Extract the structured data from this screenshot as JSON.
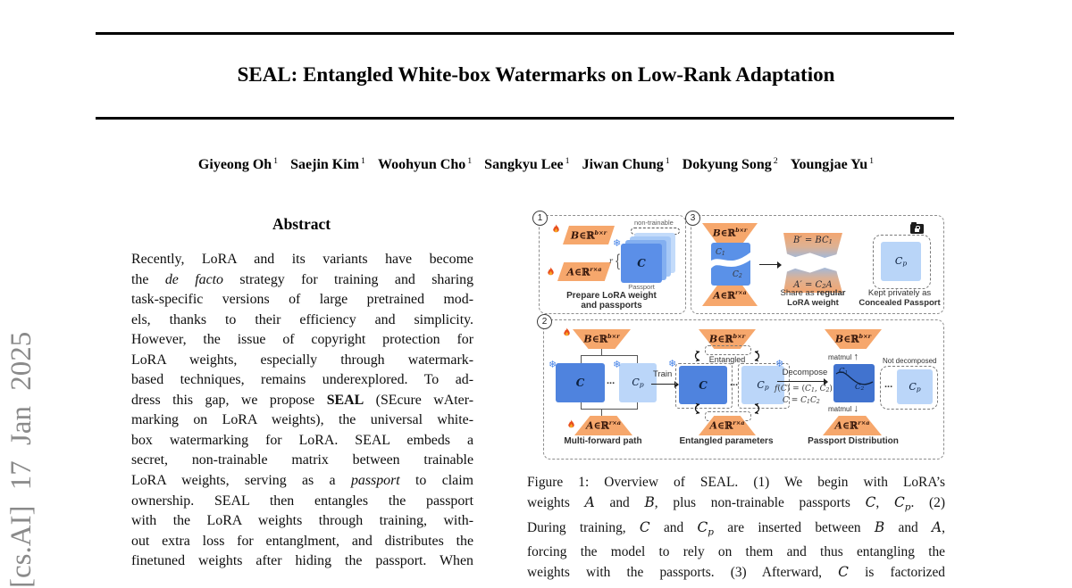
{
  "arxiv_label": "[cs.AI] 17 Jan 2025",
  "title": "SEAL: Entangled White-box Watermarks on Low-Rank Adaptation",
  "authors": [
    {
      "name": "Giyeong Oh",
      "sup": "1"
    },
    {
      "name": "Saejin Kim",
      "sup": "1"
    },
    {
      "name": "Woohyun Cho",
      "sup": "1"
    },
    {
      "name": "Sangkyu Lee",
      "sup": "1"
    },
    {
      "name": "Jiwan Chung",
      "sup": "1"
    },
    {
      "name": "Dokyung Song",
      "sup": "2"
    },
    {
      "name": "Youngjae Yu",
      "sup": "1"
    }
  ],
  "abstract": {
    "heading": "Abstract",
    "lines": [
      [
        [
          "n",
          "Recently, LoRA and its variants have become"
        ]
      ],
      [
        [
          "n",
          "the "
        ],
        [
          "i",
          "de facto"
        ],
        [
          "n",
          " strategy for training and sharing"
        ]
      ],
      [
        [
          "n",
          "task-specific versions of large pretrained mod-"
        ]
      ],
      [
        [
          "n",
          "els, thanks to their efficiency and simplicity."
        ]
      ],
      [
        [
          "n",
          "However, the issue of copyright protection for"
        ]
      ],
      [
        [
          "n",
          "LoRA weights, especially through watermark-"
        ]
      ],
      [
        [
          "n",
          "based techniques, remains underexplored. To ad-"
        ]
      ],
      [
        [
          "n",
          "dress this gap, we propose "
        ],
        [
          "b",
          "SEAL"
        ],
        [
          "n",
          " (SEcure wAter-"
        ]
      ],
      [
        [
          "n",
          "marking on LoRA weights), the universal white-"
        ]
      ],
      [
        [
          "n",
          "box watermarking for LoRA. SEAL embeds a"
        ]
      ],
      [
        [
          "n",
          "secret, non-trainable matrix between trainable"
        ]
      ],
      [
        [
          "n",
          "LoRA weights, serving as a "
        ],
        [
          "i",
          "passport"
        ],
        [
          "n",
          " to claim"
        ]
      ],
      [
        [
          "n",
          "ownership.  SEAL then entangles the passport"
        ]
      ],
      [
        [
          "n",
          "with the LoRA weights through training, with-"
        ]
      ],
      [
        [
          "n",
          "out extra loss for entanglment, and distributes the"
        ]
      ],
      [
        [
          "n",
          "finetuned weights after hiding the passport. When"
        ]
      ]
    ]
  },
  "caption": {
    "lines": [
      [
        [
          "n",
          "Figure 1: Overview of SEAL. (1) We begin with LoRA’s"
        ]
      ],
      [
        [
          "n",
          "weights "
        ],
        [
          "m",
          "A"
        ],
        [
          "n",
          " and "
        ],
        [
          "m",
          "B"
        ],
        [
          "n",
          ", plus non-trainable passports "
        ],
        [
          "m",
          "C"
        ],
        [
          "n",
          ", "
        ],
        [
          "m",
          "C"
        ],
        [
          "sub",
          "p"
        ],
        [
          "n",
          ". (2)"
        ]
      ],
      [
        [
          "n",
          "During training, "
        ],
        [
          "m",
          "C"
        ],
        [
          "n",
          " and "
        ],
        [
          "m",
          "C"
        ],
        [
          "sub",
          "p"
        ],
        [
          "n",
          " are inserted between "
        ],
        [
          "m",
          "B"
        ],
        [
          "n",
          " and "
        ],
        [
          "m",
          "A"
        ],
        [
          "n",
          ","
        ]
      ],
      [
        [
          "n",
          "forcing the model to rely on them and thus entangling the"
        ]
      ],
      [
        [
          "n",
          "weights with the passports. (3) Afterward, "
        ],
        [
          "m",
          "C"
        ],
        [
          "n",
          " is factorized"
        ]
      ]
    ]
  },
  "figure": {
    "icons": {
      "snowflake": "❄",
      "arrow_up": "↑",
      "arrow_down": "↓",
      "dots": "...",
      "r_dim": "r",
      "brace": "{"
    },
    "mats": {
      "B": [
        [
          "bi",
          "B"
        ],
        [
          "n",
          "∈ℝ"
        ],
        [
          "sup",
          "b×r"
        ]
      ],
      "A": [
        [
          "bi",
          "A"
        ],
        [
          "n",
          "∈ℝ"
        ],
        [
          "sup",
          "r×a"
        ]
      ]
    },
    "panel1": {
      "number": "1",
      "non_trainable": "non-trainable",
      "c": [
        [
          "bi",
          "C"
        ]
      ],
      "passport": "Passport",
      "caption1": "Prepare LoRA weight",
      "caption2": "and passports"
    },
    "panel3": {
      "number": "3",
      "c1": [
        [
          "m",
          "C"
        ],
        [
          "sub",
          "1"
        ]
      ],
      "c2": [
        [
          "m",
          "C"
        ],
        [
          "sub",
          "2"
        ]
      ],
      "b_prime": [
        [
          "m",
          "B′"
        ],
        [
          "n",
          " = "
        ],
        [
          "m",
          "BC"
        ],
        [
          "sub",
          "1"
        ]
      ],
      "a_prime": [
        [
          "m",
          "A′"
        ],
        [
          "n",
          " = "
        ],
        [
          "m",
          "C"
        ],
        [
          "sub",
          "2"
        ],
        [
          "m",
          "A"
        ]
      ],
      "share1_normal": "Share as ",
      "share1_bold": "regular",
      "share2_bold": "LoRA weight",
      "kept1": "Kept privately as",
      "kept2": "Concealed Passport",
      "cp": [
        [
          "m",
          "C"
        ],
        [
          "sub",
          "p"
        ]
      ]
    },
    "panel2": {
      "number": "2",
      "train": "Train",
      "entangled": "Entangled",
      "decompose": "Decompose",
      "f1": [
        [
          "m",
          "f"
        ],
        [
          "n",
          "("
        ],
        [
          "m",
          "C"
        ],
        [
          "n",
          ") = ("
        ],
        [
          "m",
          "C"
        ],
        [
          "sub",
          "1"
        ],
        [
          "n",
          ", "
        ],
        [
          "m",
          "C"
        ],
        [
          "sub",
          "2"
        ],
        [
          "n",
          ")"
        ]
      ],
      "f2": [
        [
          "m",
          "C"
        ],
        [
          "n",
          " = "
        ],
        [
          "m",
          "C"
        ],
        [
          "sub",
          "1"
        ],
        [
          "m",
          "C"
        ],
        [
          "sub",
          "2"
        ]
      ],
      "matmul": "matmul",
      "not_decomposed": "Not decomposed",
      "caption_left": "Multi-forward path",
      "caption_mid": "Entangled parameters",
      "caption_right": "Passport Distribution",
      "c": [
        [
          "bi",
          "C"
        ]
      ],
      "cp": [
        [
          "m",
          "C"
        ],
        [
          "sub",
          "p"
        ]
      ]
    }
  }
}
